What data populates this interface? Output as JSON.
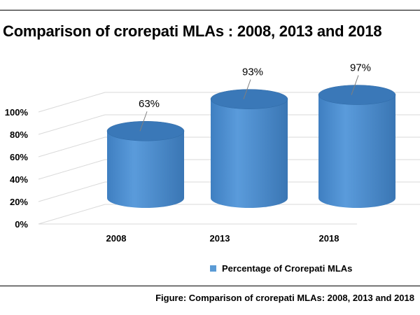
{
  "title": "Comparison of crorepati MLAs : 2008, 2013 and 2018",
  "caption": "Figure: Comparison of crorepati MLAs: 2008, 2013 and 2018",
  "colors": {
    "bar": "#4f8fd0",
    "bar_dark": "#2f6aa6",
    "bar_top": "#3a78b8",
    "grid": "#d9d9d9"
  },
  "chart_data": {
    "type": "bar",
    "categories": [
      "2008",
      "2013",
      "2018"
    ],
    "series": [
      {
        "name": "Percentage of Crorepati MLAs",
        "values": [
          63,
          93,
          97
        ],
        "labels": [
          "63%",
          "93%",
          "97%"
        ]
      }
    ],
    "ylim": [
      0,
      100
    ],
    "yticks": [
      "0%",
      "20%",
      "40%",
      "60%",
      "80%",
      "100%"
    ],
    "legend_position": "bottom",
    "grid": true
  }
}
